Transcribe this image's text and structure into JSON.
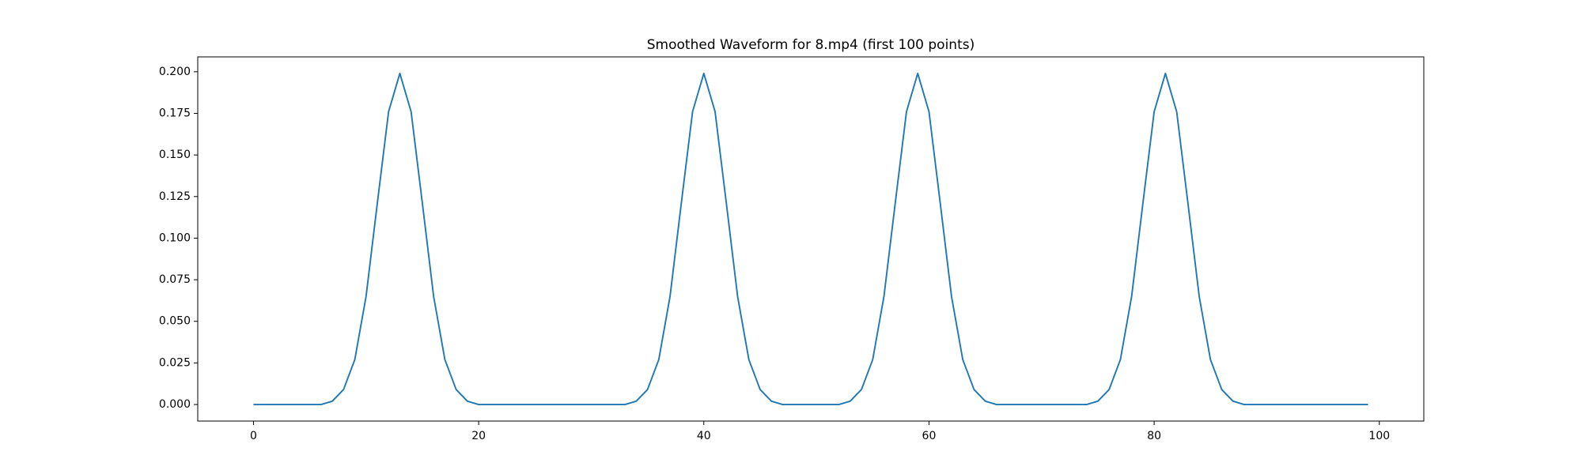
{
  "chart_data": {
    "type": "line",
    "title": "Smoothed Waveform for 8.mp4 (first 100 points)",
    "x": [
      0,
      1,
      2,
      3,
      4,
      5,
      6,
      7,
      8,
      9,
      10,
      11,
      12,
      13,
      14,
      15,
      16,
      17,
      18,
      19,
      20,
      21,
      22,
      23,
      24,
      25,
      26,
      27,
      28,
      29,
      30,
      31,
      32,
      33,
      34,
      35,
      36,
      37,
      38,
      39,
      40,
      41,
      42,
      43,
      44,
      45,
      46,
      47,
      48,
      49,
      50,
      51,
      52,
      53,
      54,
      55,
      56,
      57,
      58,
      59,
      60,
      61,
      62,
      63,
      64,
      65,
      66,
      67,
      68,
      69,
      70,
      71,
      72,
      73,
      74,
      75,
      76,
      77,
      78,
      79,
      80,
      81,
      82,
      83,
      84,
      85,
      86,
      87,
      88,
      89,
      90,
      91,
      92,
      93,
      94,
      95,
      96,
      97,
      98,
      99
    ],
    "series": [
      {
        "color": "#1f77b4",
        "values": [
          0,
          0,
          0,
          0,
          0,
          0,
          0,
          0.002,
          0.009,
          0.027,
          0.065,
          0.121,
          0.176,
          0.199,
          0.176,
          0.121,
          0.065,
          0.027,
          0.009,
          0.002,
          0,
          0,
          0,
          0,
          0,
          0,
          0,
          0,
          0,
          0,
          0,
          0,
          0,
          0,
          0.002,
          0.009,
          0.027,
          0.065,
          0.121,
          0.176,
          0.199,
          0.176,
          0.121,
          0.065,
          0.027,
          0.009,
          0.002,
          0,
          0,
          0,
          0,
          0,
          0,
          0.002,
          0.009,
          0.027,
          0.065,
          0.121,
          0.176,
          0.199,
          0.176,
          0.121,
          0.065,
          0.027,
          0.009,
          0.002,
          0,
          0,
          0,
          0,
          0,
          0,
          0,
          0,
          0,
          0.002,
          0.009,
          0.027,
          0.065,
          0.121,
          0.176,
          0.199,
          0.176,
          0.121,
          0.065,
          0.027,
          0.009,
          0.002,
          0,
          0,
          0,
          0,
          0,
          0,
          0,
          0,
          0,
          0,
          0,
          0
        ]
      }
    ],
    "xlim": [
      -4.95,
      103.95
    ],
    "xticks": [
      0,
      20,
      40,
      60,
      80,
      100
    ],
    "ylim": [
      -0.00995,
      0.20895
    ],
    "yticks": [
      {
        "value": 0,
        "label": "0.000"
      },
      {
        "value": 0.025,
        "label": "0.025"
      },
      {
        "value": 0.05,
        "label": "0.050"
      },
      {
        "value": 0.075,
        "label": "0.075"
      },
      {
        "value": 0.1,
        "label": "0.100"
      },
      {
        "value": 0.125,
        "label": "0.125"
      },
      {
        "value": 0.15,
        "label": "0.150"
      },
      {
        "value": 0.175,
        "label": "0.175"
      },
      {
        "value": 0.2,
        "label": "0.200"
      }
    ],
    "grid": false
  }
}
